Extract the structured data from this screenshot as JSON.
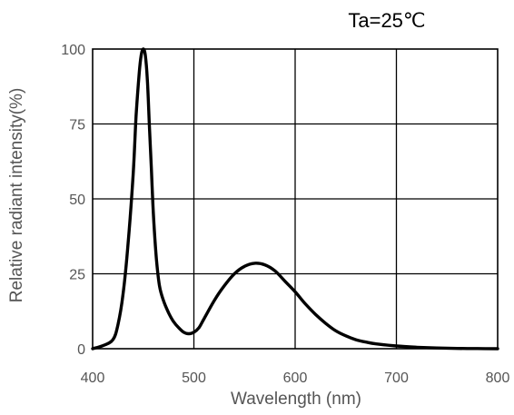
{
  "chart_data": {
    "type": "line",
    "title": "Ta=25℃",
    "xlabel": "Wavelength  (nm)",
    "ylabel": "Relative radiant intensity(%)",
    "xlim": [
      400,
      800
    ],
    "ylim": [
      0,
      100
    ],
    "xticks": [
      "400",
      "500",
      "600",
      "700",
      "800"
    ],
    "yticks": [
      "0",
      "25",
      "50",
      "75",
      "100"
    ],
    "grid": true,
    "line_color": "#000000",
    "series": [
      {
        "x": [
          400,
          410,
          420,
          425,
          430,
          435,
          440,
          443,
          446,
          448,
          450,
          452,
          454,
          456,
          458,
          460,
          463,
          466,
          470,
          475,
          480,
          485,
          490,
          495,
          500,
          505,
          510,
          520,
          530,
          540,
          550,
          560,
          570,
          580,
          590,
          600,
          610,
          620,
          630,
          640,
          650,
          660,
          670,
          680,
          700,
          720,
          740,
          760,
          780,
          800
        ],
        "y": [
          0,
          1,
          3,
          8,
          18,
          35,
          58,
          78,
          92,
          98,
          100,
          98,
          90,
          75,
          60,
          45,
          30,
          21,
          16,
          12,
          9,
          7,
          5.5,
          5,
          5.5,
          7,
          10,
          16,
          21,
          25,
          27.5,
          28.5,
          28,
          26,
          22.5,
          19,
          15,
          11.5,
          8.5,
          6,
          4.3,
          3,
          2.2,
          1.6,
          0.9,
          0.5,
          0.25,
          0.1,
          0.05,
          0
        ]
      }
    ]
  }
}
